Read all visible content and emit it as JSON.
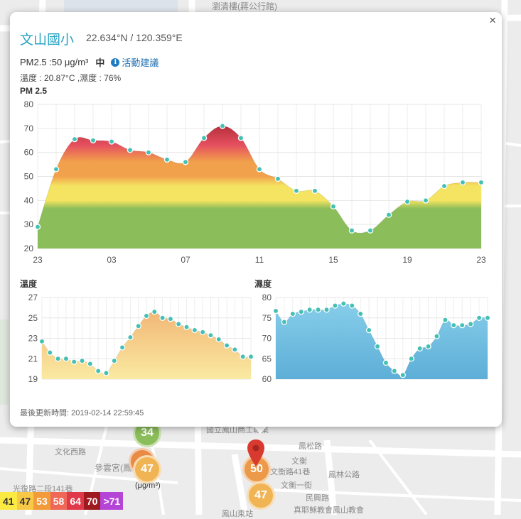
{
  "map": {
    "labels": [
      {
        "text": "瀏清樓(蔣公行館)"
      },
      {
        "text": "文化西路"
      },
      {
        "text": "參雲宮(鳳山"
      },
      {
        "text": "國立鳳山商工職業"
      },
      {
        "text": "文衡"
      },
      {
        "text": "文衡路41巷"
      },
      {
        "text": "文衡一街"
      },
      {
        "text": "鳳松路"
      },
      {
        "text": "鳳林公路"
      },
      {
        "text": "民興路"
      },
      {
        "text": "真耶穌教會鳳山教會"
      },
      {
        "text": "光復路二段141巷"
      },
      {
        "text": "鳳山東站"
      },
      {
        "text": "(μg/m³)"
      }
    ],
    "markers": [
      {
        "value": "34",
        "color": "#8bbd5a"
      },
      {
        "value": "47",
        "color": "#f0b455"
      },
      {
        "value": "50",
        "color": "#ec9a4a"
      },
      {
        "value": "47",
        "color": "#f0b455"
      }
    ],
    "hidden_marker_color": "#e98a45",
    "pin_color": "#d93a2f"
  },
  "legend": [
    {
      "label": "41",
      "bg": "#fbea42",
      "fg": "#333"
    },
    {
      "label": "47",
      "bg": "#f8c847",
      "fg": "#333"
    },
    {
      "label": "53",
      "bg": "#f39a39",
      "fg": "#fff"
    },
    {
      "label": "58",
      "bg": "#ef6857",
      "fg": "#fff"
    },
    {
      "label": "64",
      "bg": "#e0394a",
      "fg": "#fff"
    },
    {
      "label": "70",
      "bg": "#9f1a1f",
      "fg": "#fff"
    },
    {
      "label": ">71",
      "bg": "#b545d6",
      "fg": "#fff"
    }
  ],
  "popup": {
    "close_label": "×",
    "station": "文山國小",
    "coords": "22.634°N / 120.359°E",
    "pm_text": "PM2.5 :50 μg/m³",
    "pm_level": "中",
    "info_glyph": "i",
    "advice": "活動建議",
    "temp_humidity": "溫度 : 20.87°C ,濕度 : 76%",
    "pm_chart_title": "PM 2.5",
    "temp_chart_title": "溫度",
    "hum_chart_title": "濕度",
    "updated": "最後更新時間: 2019-02-14 22:59:45"
  },
  "chart_data": [
    {
      "type": "area",
      "title": "PM 2.5",
      "x": [
        23,
        0,
        1,
        2,
        3,
        4,
        5,
        6,
        7,
        8,
        9,
        10,
        11,
        12,
        13,
        14,
        15,
        16,
        17,
        18,
        19,
        20,
        21,
        22,
        23
      ],
      "xticks": [
        "23",
        "03",
        "07",
        "11",
        "15",
        "19",
        "23"
      ],
      "values": [
        29,
        53,
        65.5,
        65,
        64.5,
        61,
        60,
        57,
        56,
        66,
        71,
        66,
        53,
        49,
        44,
        44,
        37.5,
        27.5,
        27.5,
        34,
        39.5,
        40,
        46,
        47.5,
        47.5
      ],
      "ylim": [
        20,
        80
      ],
      "yticks": [
        20,
        30,
        40,
        50,
        60,
        70,
        80
      ],
      "color_stops": [
        "#8bbd5a",
        "#f5e462",
        "#f1a14b",
        "#e6505f",
        "#b52f3c"
      ],
      "point_color": "#45c0b4",
      "grid": true
    },
    {
      "type": "area",
      "title": "溫度",
      "values": [
        22.7,
        21.6,
        21,
        21,
        20.7,
        20.8,
        20.5,
        19.8,
        19.6,
        20.8,
        22.1,
        23.1,
        24.2,
        25.2,
        25.6,
        25,
        24.9,
        24.4,
        24.1,
        23.8,
        23.6,
        23.3,
        22.9,
        22.3,
        21.9,
        21.2,
        21.2
      ],
      "ylim": [
        19,
        27
      ],
      "yticks": [
        19,
        21,
        23,
        25,
        27
      ],
      "fill_top": "#f2b777",
      "fill_bottom": "#faeaa1",
      "point_color": "#45c0b4",
      "grid": true
    },
    {
      "type": "area",
      "title": "濕度",
      "values": [
        76.7,
        74,
        76,
        76.5,
        77,
        77,
        77,
        78,
        78.5,
        78,
        76,
        72,
        68,
        64,
        62,
        61,
        65,
        67.5,
        68,
        70.5,
        74.5,
        73.2,
        73.2,
        73.5,
        75,
        75
      ],
      "ylim": [
        60,
        80
      ],
      "yticks": [
        60,
        65,
        70,
        75,
        80
      ],
      "fill_top": "#86cde9",
      "fill_bottom": "#5daed8",
      "point_color": "#45c0b4",
      "grid": true
    }
  ]
}
